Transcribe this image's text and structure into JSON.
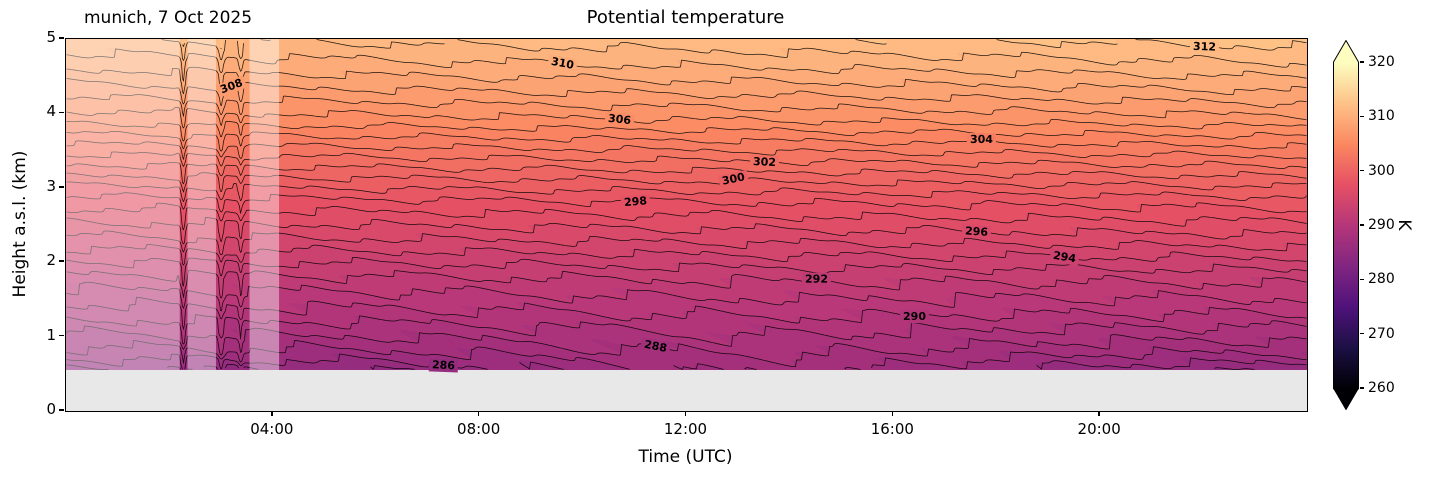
{
  "figure": {
    "subtitle_left": "munich, 7 Oct 2025",
    "title": "Potential temperature",
    "xlabel": "Time (UTC)",
    "ylabel": "Height a.s.l. (km)",
    "colorbar_label": "K"
  },
  "axes": {
    "x_ticks": [
      {
        "hour": 4,
        "label": "04:00"
      },
      {
        "hour": 8,
        "label": "08:00"
      },
      {
        "hour": 12,
        "label": "12:00"
      },
      {
        "hour": 16,
        "label": "16:00"
      },
      {
        "hour": 20,
        "label": "20:00"
      }
    ],
    "y_ticks": [
      {
        "km": 0,
        "label": "0"
      },
      {
        "km": 1,
        "label": "1"
      },
      {
        "km": 2,
        "label": "2"
      },
      {
        "km": 3,
        "label": "3"
      },
      {
        "km": 4,
        "label": "4"
      },
      {
        "km": 5,
        "label": "5"
      }
    ]
  },
  "colorbar": {
    "label": "K",
    "vmin": 260,
    "vmax": 320,
    "extend": "both",
    "ticks": [
      {
        "value": 260,
        "label": "260"
      },
      {
        "value": 270,
        "label": "270"
      },
      {
        "value": 280,
        "label": "280"
      },
      {
        "value": 290,
        "label": "290"
      },
      {
        "value": 300,
        "label": "300"
      },
      {
        "value": 310,
        "label": "310"
      },
      {
        "value": 320,
        "label": "320"
      }
    ]
  },
  "chart_data": {
    "type": "heatmap",
    "title": "Potential temperature",
    "station": "munich",
    "date": "7 Oct 2025",
    "xlabel": "Time (UTC)",
    "ylabel": "Height a.s.l. (km)",
    "units": "K",
    "x_range_hours": [
      0,
      24
    ],
    "y_range_km": [
      0,
      5
    ],
    "data_floor_km": 0.55,
    "contour_interval_K": 1,
    "contour_levels_K": {
      "min": 284,
      "max": 314
    },
    "labeled_contours": [
      {
        "level": 286,
        "hour": 7.3
      },
      {
        "level": 288,
        "hour": 11.4
      },
      {
        "level": 290,
        "hour": 16.4
      },
      {
        "level": 292,
        "hour": 14.5
      },
      {
        "level": 294,
        "hour": 19.3
      },
      {
        "level": 296,
        "hour": 17.6
      },
      {
        "level": 298,
        "hour": 11.0
      },
      {
        "level": 300,
        "hour": 12.9
      },
      {
        "level": 302,
        "hour": 13.5
      },
      {
        "level": 304,
        "hour": 17.7
      },
      {
        "level": 306,
        "hour": 10.7
      },
      {
        "level": 308,
        "hour": 3.2
      },
      {
        "level": 310,
        "hour": 9.6
      },
      {
        "level": 312,
        "hour": 22.0
      }
    ],
    "profile": {
      "heights_km": [
        0.55,
        0.8,
        1.3,
        1.8,
        2.3,
        2.8,
        3.3,
        3.9,
        4.3,
        4.65,
        5.0
      ],
      "theta_K": [
        284.9,
        286.7,
        289.4,
        291.7,
        294.7,
        297.4,
        300.9,
        305.2,
        307.5,
        309.3,
        310.8
      ]
    },
    "diurnal": {
      "time_trend_K_per_day": 1.7,
      "surface_warming_K": 2.2,
      "warming_peak_hour": 13.5,
      "warming_sigma_hours": 3.5,
      "warming_decay_km": 0.45
    },
    "noise": {
      "base_amplitude_K": 0.38,
      "surface_extra_K": 0.35,
      "decay_km": 1.5
    },
    "artifact_spikes": [
      {
        "hour": 2.27,
        "amplitude_K": 1.4,
        "width_h": 0.045
      },
      {
        "hour": 3.0,
        "amplitude_K": 1.2,
        "width_h": 0.055
      },
      {
        "hour": 3.38,
        "amplitude_K": 1.0,
        "width_h": 0.045
      }
    ],
    "faded_periods_hours": [
      [
        0,
        2.2
      ],
      [
        2.35,
        2.9
      ],
      [
        3.55,
        4.12
      ]
    ],
    "color_scale": {
      "colormap": "magma",
      "vmin": 260,
      "vmax": 320,
      "stops": [
        [
          0,
          "#000004"
        ],
        [
          0.125,
          "#1c1044"
        ],
        [
          0.25,
          "#4f127b"
        ],
        [
          0.375,
          "#812581"
        ],
        [
          0.5,
          "#b5367a"
        ],
        [
          0.625,
          "#e55064"
        ],
        [
          0.75,
          "#fb8861"
        ],
        [
          0.875,
          "#fec287"
        ],
        [
          1,
          "#fcfdbf"
        ]
      ]
    },
    "no_data_color": "#e8e8e8"
  }
}
